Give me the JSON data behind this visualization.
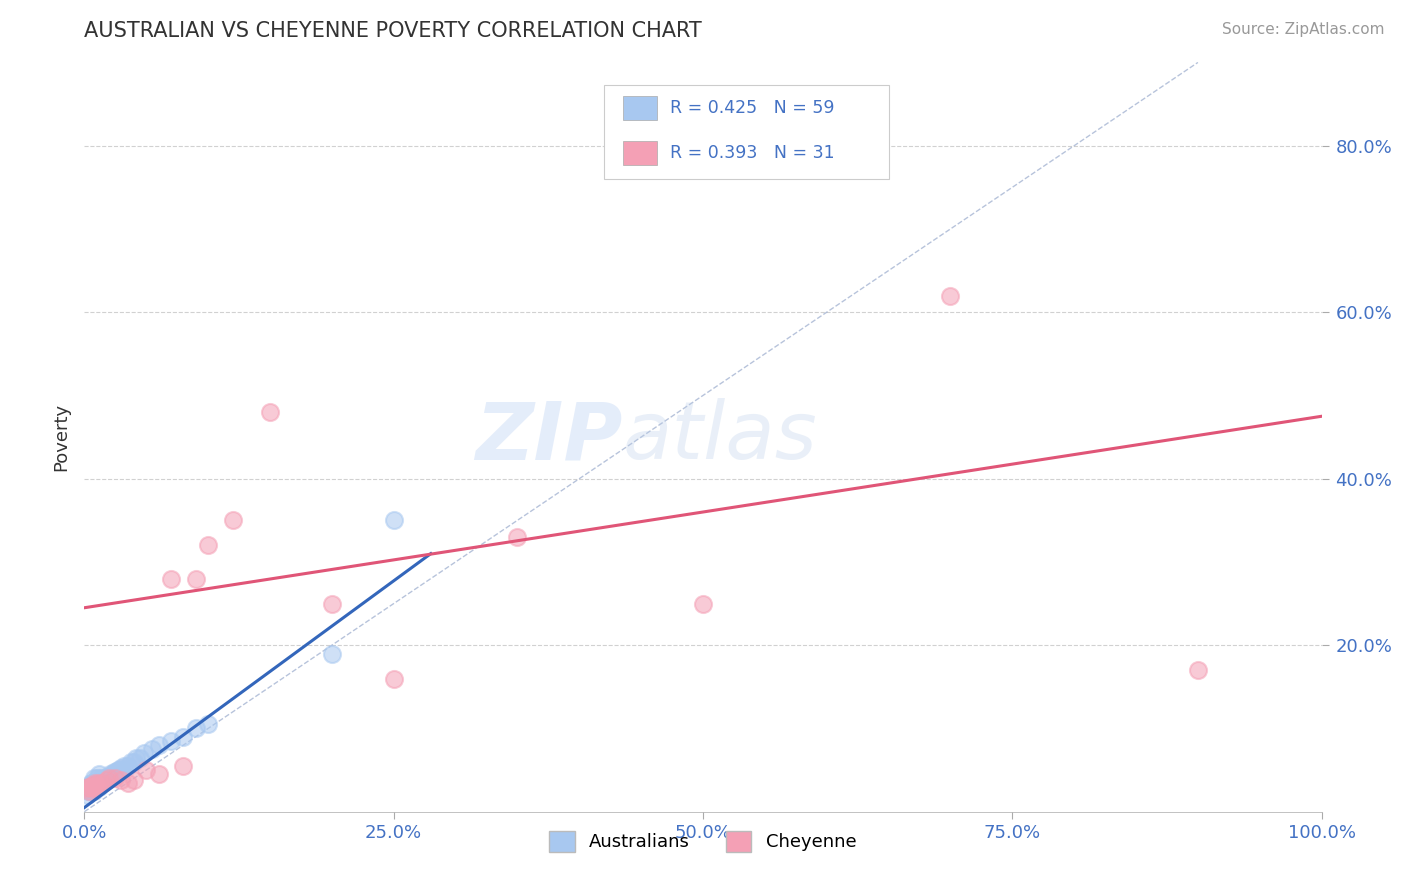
{
  "title": "AUSTRALIAN VS CHEYENNE POVERTY CORRELATION CHART",
  "source": "Source: ZipAtlas.com",
  "ylabel": "Poverty",
  "xlim": [
    0.0,
    1.0
  ],
  "ylim": [
    0.0,
    0.9
  ],
  "xtick_labels": [
    "0.0%",
    "25.0%",
    "50.0%",
    "75.0%",
    "100.0%"
  ],
  "xtick_positions": [
    0.0,
    0.25,
    0.5,
    0.75,
    1.0
  ],
  "ytick_labels": [
    "20.0%",
    "40.0%",
    "60.0%",
    "80.0%"
  ],
  "ytick_positions": [
    0.2,
    0.4,
    0.6,
    0.8
  ],
  "background_color": "#ffffff",
  "grid_color": "#cccccc",
  "title_color": "#333333",
  "australian_color": "#a8c8f0",
  "cheyenne_color": "#f4a0b5",
  "australian_line_color": "#3366bb",
  "cheyenne_line_color": "#e05577",
  "diagonal_color": "#99aacc",
  "R_australian": 0.425,
  "N_australian": 59,
  "R_cheyenne": 0.393,
  "N_cheyenne": 31,
  "watermark_zip": "ZIP",
  "watermark_atlas": "atlas",
  "australian_x": [
    0.002,
    0.003,
    0.003,
    0.004,
    0.004,
    0.005,
    0.005,
    0.005,
    0.006,
    0.006,
    0.006,
    0.007,
    0.007,
    0.007,
    0.008,
    0.008,
    0.008,
    0.009,
    0.009,
    0.01,
    0.01,
    0.011,
    0.011,
    0.012,
    0.012,
    0.013,
    0.013,
    0.014,
    0.015,
    0.015,
    0.016,
    0.017,
    0.018,
    0.019,
    0.02,
    0.021,
    0.022,
    0.023,
    0.024,
    0.025,
    0.026,
    0.027,
    0.028,
    0.03,
    0.032,
    0.035,
    0.038,
    0.04,
    0.042,
    0.045,
    0.048,
    0.055,
    0.06,
    0.07,
    0.08,
    0.09,
    0.1,
    0.2,
    0.25
  ],
  "australian_y": [
    0.02,
    0.025,
    0.03,
    0.025,
    0.03,
    0.025,
    0.03,
    0.035,
    0.025,
    0.03,
    0.035,
    0.025,
    0.03,
    0.035,
    0.025,
    0.03,
    0.04,
    0.03,
    0.035,
    0.03,
    0.04,
    0.03,
    0.035,
    0.03,
    0.045,
    0.035,
    0.04,
    0.035,
    0.035,
    0.04,
    0.038,
    0.038,
    0.04,
    0.042,
    0.04,
    0.045,
    0.042,
    0.045,
    0.048,
    0.048,
    0.045,
    0.05,
    0.05,
    0.052,
    0.055,
    0.055,
    0.06,
    0.06,
    0.065,
    0.065,
    0.07,
    0.075,
    0.08,
    0.085,
    0.09,
    0.1,
    0.105,
    0.19,
    0.35
  ],
  "cheyenne_x": [
    0.002,
    0.003,
    0.004,
    0.005,
    0.006,
    0.007,
    0.008,
    0.009,
    0.01,
    0.012,
    0.015,
    0.018,
    0.02,
    0.025,
    0.03,
    0.035,
    0.04,
    0.05,
    0.06,
    0.07,
    0.08,
    0.09,
    0.1,
    0.12,
    0.15,
    0.2,
    0.25,
    0.35,
    0.5,
    0.7,
    0.9
  ],
  "cheyenne_y": [
    0.028,
    0.03,
    0.025,
    0.03,
    0.028,
    0.032,
    0.03,
    0.035,
    0.032,
    0.035,
    0.035,
    0.038,
    0.04,
    0.04,
    0.038,
    0.035,
    0.038,
    0.05,
    0.045,
    0.28,
    0.055,
    0.28,
    0.32,
    0.35,
    0.48,
    0.25,
    0.16,
    0.33,
    0.25,
    0.62,
    0.17
  ],
  "aus_line_x0": 0.0,
  "aus_line_y0": 0.005,
  "aus_line_x1": 0.28,
  "aus_line_y1": 0.31,
  "chey_line_x0": 0.0,
  "chey_line_y0": 0.245,
  "chey_line_x1": 1.0,
  "chey_line_y1": 0.475
}
